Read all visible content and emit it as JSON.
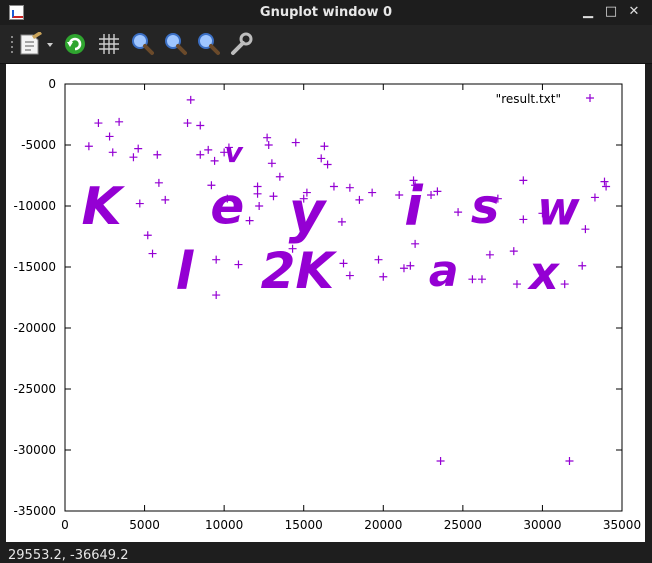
{
  "window": {
    "title": "Gnuplot window 0",
    "min_glyph": "▁",
    "max_glyph": "□",
    "close_glyph": "✕"
  },
  "toolbar": {
    "icons": [
      "copy-print-menu-icon",
      "replot-icon",
      "grid-icon",
      "zoom-icon",
      "zoom-in-icon",
      "zoom-out-icon",
      "options-wrench-icon"
    ]
  },
  "status": {
    "text": "29553.2, -36649.2"
  },
  "colors": {
    "series": "#9400d3",
    "axis": "#000000",
    "background": "#ffffff",
    "chrome": "#1e1e1e"
  },
  "chart_data": {
    "type": "scatter",
    "xlim": [
      0,
      35000
    ],
    "ylim": [
      -35000,
      0
    ],
    "x_ticks": [
      "0",
      "5000",
      "10000",
      "15000",
      "20000",
      "25000",
      "30000",
      "35000"
    ],
    "y_ticks": [
      "0",
      "-5000",
      "-10000",
      "-15000",
      "-20000",
      "-25000",
      "-30000",
      "-35000"
    ],
    "grid": false,
    "legend_position": "top-right",
    "series": [
      {
        "name": "\"result.txt\"",
        "marker": "plus",
        "points": [
          [
            1500,
            -5100
          ],
          [
            2100,
            -3200
          ],
          [
            2800,
            -4300
          ],
          [
            3000,
            -5600
          ],
          [
            3400,
            -3100
          ],
          [
            4300,
            -6000
          ],
          [
            4600,
            -5300
          ],
          [
            4700,
            -9800
          ],
          [
            5200,
            -12400
          ],
          [
            5500,
            -13900
          ],
          [
            5800,
            -5800
          ],
          [
            5900,
            -8100
          ],
          [
            6300,
            -9500
          ],
          [
            7700,
            -3200
          ],
          [
            7900,
            -1300
          ],
          [
            8500,
            -3400
          ],
          [
            8500,
            -5800
          ],
          [
            9000,
            -5400
          ],
          [
            9200,
            -8300
          ],
          [
            9400,
            -6300
          ],
          [
            9500,
            -14400
          ],
          [
            9500,
            -17300
          ],
          [
            10000,
            -5600
          ],
          [
            10300,
            -5200
          ],
          [
            10200,
            -9400
          ],
          [
            10900,
            -14800
          ],
          [
            11600,
            -11200
          ],
          [
            12100,
            -8400
          ],
          [
            12200,
            -10000
          ],
          [
            12100,
            -9000
          ],
          [
            12700,
            -4400
          ],
          [
            12800,
            -5000
          ],
          [
            13000,
            -6500
          ],
          [
            13100,
            -9200
          ],
          [
            13500,
            -7600
          ],
          [
            14300,
            -13500
          ],
          [
            14500,
            -4800
          ],
          [
            15000,
            -9400
          ],
          [
            15200,
            -8900
          ],
          [
            16100,
            -6100
          ],
          [
            16300,
            -5100
          ],
          [
            16500,
            -6600
          ],
          [
            16900,
            -8400
          ],
          [
            17400,
            -11300
          ],
          [
            17500,
            -14700
          ],
          [
            17900,
            -8500
          ],
          [
            17900,
            -15700
          ],
          [
            18500,
            -9500
          ],
          [
            19300,
            -8900
          ],
          [
            19700,
            -14400
          ],
          [
            20000,
            -15800
          ],
          [
            21000,
            -9100
          ],
          [
            21300,
            -15100
          ],
          [
            21700,
            -14900
          ],
          [
            21900,
            -7900
          ],
          [
            22000,
            -13100
          ],
          [
            22000,
            -8300
          ],
          [
            23000,
            -9100
          ],
          [
            23400,
            -8800
          ],
          [
            23600,
            -30900
          ],
          [
            24700,
            -10500
          ],
          [
            25600,
            -16000
          ],
          [
            26200,
            -16000
          ],
          [
            26700,
            -14000
          ],
          [
            27200,
            -9400
          ],
          [
            28200,
            -13700
          ],
          [
            28400,
            -16400
          ],
          [
            28800,
            -7900
          ],
          [
            28800,
            -11100
          ],
          [
            30000,
            -10600
          ],
          [
            31400,
            -16400
          ],
          [
            31700,
            -30900
          ],
          [
            32700,
            -11900
          ],
          [
            33300,
            -9300
          ],
          [
            33900,
            -8000
          ],
          [
            34000,
            -8400
          ],
          [
            32500,
            -14900
          ]
        ],
        "annotations": [
          "K",
          "e",
          "y",
          "i",
          "s",
          "w",
          "l",
          "2K",
          "a",
          "x",
          "v"
        ]
      }
    ]
  }
}
